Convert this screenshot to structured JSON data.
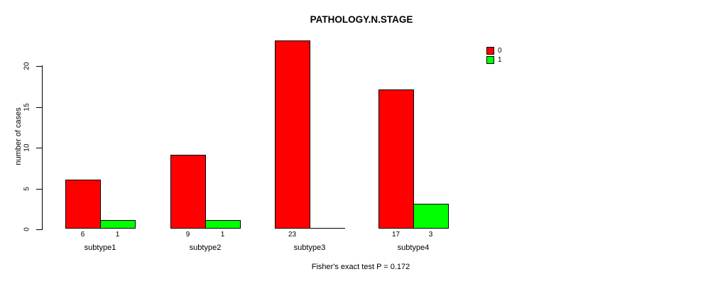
{
  "title": "PATHOLOGY.N.STAGE",
  "y_axis": {
    "label": "number of cases",
    "ticks": [
      0,
      5,
      10,
      15,
      20
    ]
  },
  "legend": {
    "items": [
      {
        "label": "0",
        "color": "#FF0000"
      },
      {
        "label": "1",
        "color": "#00FF00"
      }
    ]
  },
  "caption": "Fisher's exact test P = 0.172",
  "chart_data": {
    "type": "bar",
    "title": "PATHOLOGY.N.STAGE",
    "xlabel": "",
    "ylabel": "number of cases",
    "categories": [
      "subtype1",
      "subtype2",
      "subtype3",
      "subtype4"
    ],
    "series": [
      {
        "name": "0",
        "color": "#FF0000",
        "values": [
          6,
          9,
          23,
          17
        ]
      },
      {
        "name": "1",
        "color": "#00FF00",
        "values": [
          1,
          1,
          0,
          3
        ]
      }
    ],
    "ylim": [
      0,
      23
    ],
    "yticks": [
      0,
      5,
      10,
      15,
      20
    ],
    "bar_value_labels": [
      [
        "6",
        "9",
        "23",
        "17"
      ],
      [
        "1",
        "1",
        "",
        "3"
      ]
    ],
    "grid": false,
    "legend_position": "top-right",
    "annotation": "Fisher's exact test P = 0.172"
  }
}
